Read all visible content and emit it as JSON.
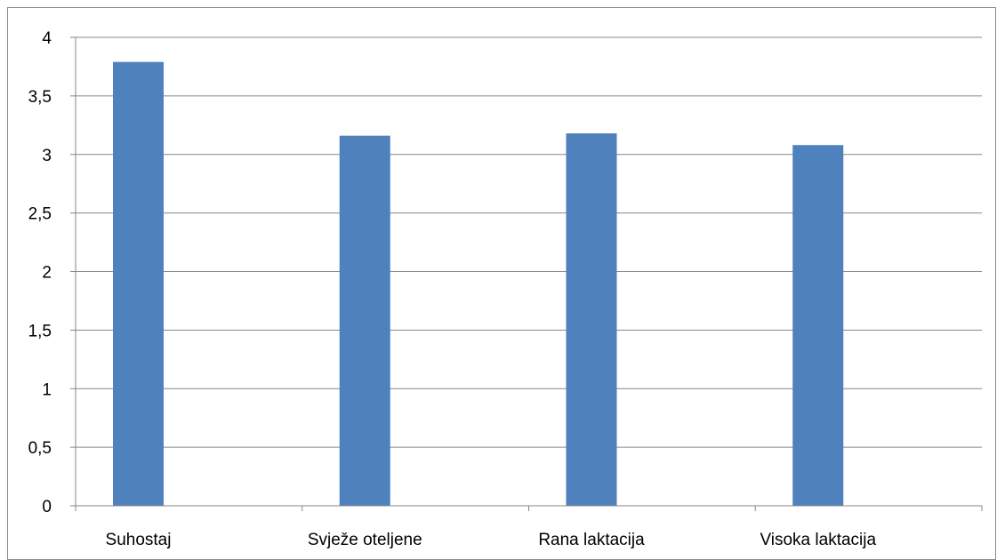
{
  "chart_data": {
    "type": "bar",
    "categories": [
      "Suhostaj",
      "Svježe oteljene",
      "Rana laktacija",
      "Visoka laktacija"
    ],
    "series": [
      {
        "values": [
          3.79,
          3.16,
          3.18,
          3.08
        ],
        "color": "#4f81bd"
      }
    ],
    "ylim": [
      0,
      4
    ],
    "yticks": [
      0,
      0.5,
      1,
      1.5,
      2,
      2.5,
      3,
      3.5,
      4
    ],
    "ytick_labels": [
      "0",
      "0,5",
      "1",
      "1,5",
      "2",
      "2,5",
      "3",
      "3,5",
      "4"
    ],
    "grid": true,
    "gridline_color": "#868686",
    "legend": "none",
    "title": "",
    "xlabel": "",
    "ylabel": ""
  }
}
